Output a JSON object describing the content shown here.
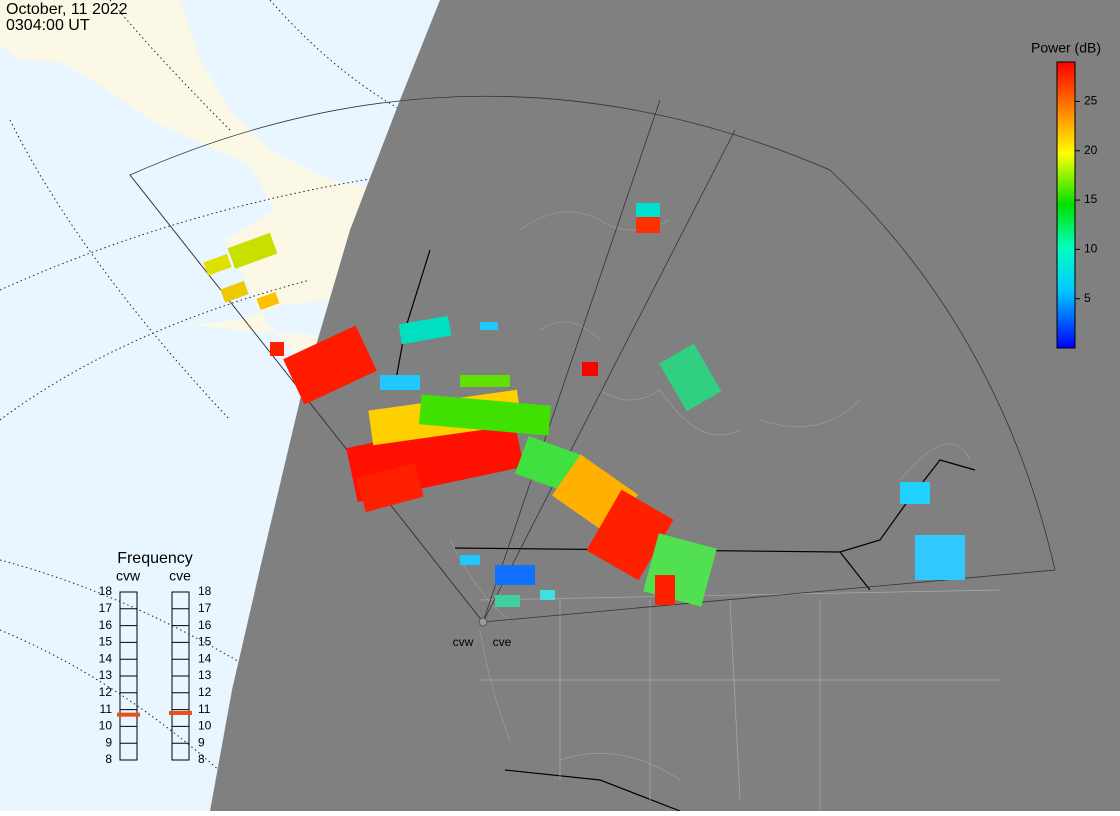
{
  "header": {
    "date": "October, 11 2022",
    "time": "0304:00 UT"
  },
  "colorbar": {
    "title": "Power (dB)",
    "lim": [
      0,
      29
    ],
    "ticks": [
      5,
      10,
      15,
      20,
      25
    ]
  },
  "frequency": {
    "title": "Frequency",
    "lim": [
      8,
      18
    ],
    "ticks": [
      8,
      9,
      10,
      11,
      12,
      13,
      14,
      15,
      16,
      17,
      18
    ],
    "radars": [
      {
        "name": "cvw",
        "value": 10.7
      },
      {
        "name": "cve",
        "value": 10.8
      }
    ]
  },
  "sites": [
    "cvw",
    "cve"
  ]
}
